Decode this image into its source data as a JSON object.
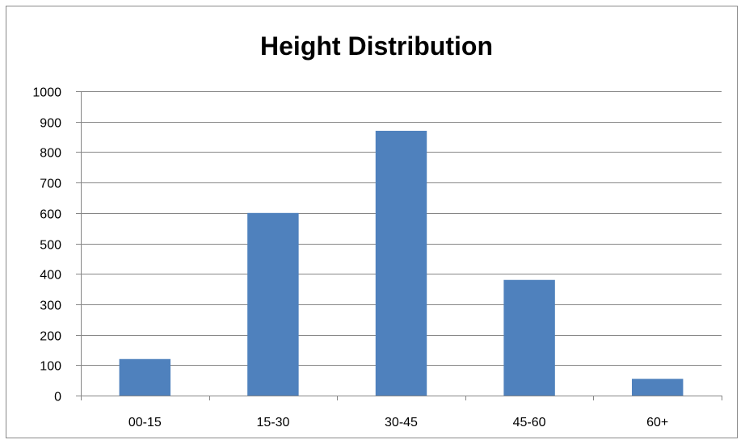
{
  "chart_data": {
    "type": "bar",
    "title": "Height Distribution",
    "xlabel": "",
    "ylabel": "",
    "categories": [
      "00-15",
      "15-30",
      "30-45",
      "45-60",
      "60+"
    ],
    "values": [
      120,
      600,
      870,
      380,
      55
    ],
    "ylim": [
      0,
      1000
    ],
    "yticks": [
      0,
      100,
      200,
      300,
      400,
      500,
      600,
      700,
      800,
      900,
      1000
    ],
    "grid": true,
    "legend": "none",
    "colors": {
      "bar": "#4F81BD",
      "grid": "#868686",
      "axis": "#868686",
      "frame": "#888888"
    }
  }
}
